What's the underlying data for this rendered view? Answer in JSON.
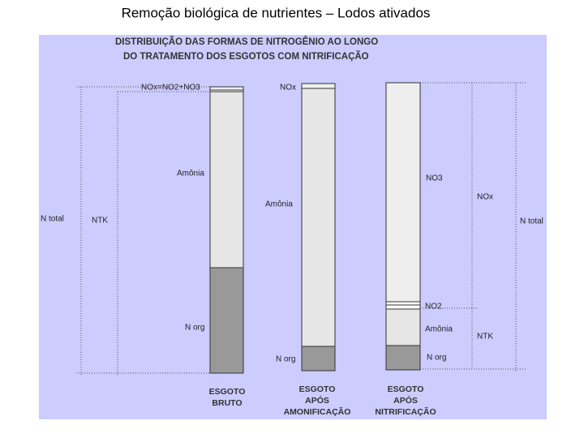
{
  "title": "Remoção biológica de nutrientes – Lodos ativados",
  "heading": [
    "DISTRIBUIÇÃO DAS FORMAS DE NITROGÊNIO AO LONGO",
    "DO TRATAMENTO DOS ESGOTOS COM NITRIFICAÇÃO"
  ],
  "left_labels": [
    "N total",
    "NTK"
  ],
  "columns": [
    {
      "labels": [
        "NOx=NO2+NO3",
        "Amônia",
        "N org"
      ],
      "caption": [
        "ESGOTO",
        "BRUTO"
      ]
    },
    {
      "labels": [
        "NOx",
        "Amônia",
        "N org"
      ],
      "caption": [
        "ESGOTO",
        "APÓS",
        "AMONIFICAÇÃO"
      ]
    },
    {
      "labels": [
        "NO3",
        "NO2",
        "Amônia",
        "N org"
      ],
      "caption": [
        "ESGOTO",
        "APÓS",
        "NITRIFICAÇÃO"
      ]
    }
  ],
  "right_labels": [
    "NOx",
    "NTK",
    "N total"
  ]
}
